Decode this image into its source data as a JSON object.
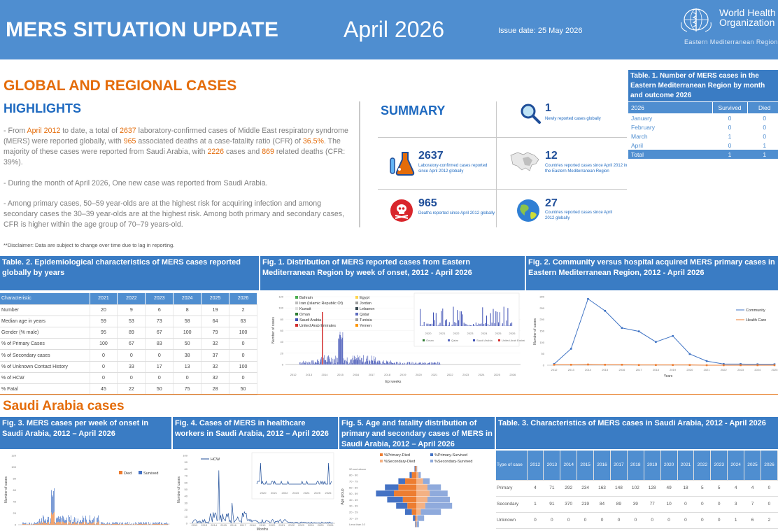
{
  "header": {
    "title": "MERS SITUATION UPDATE",
    "month": "April 2026",
    "issue_date": "Issue date: 25 May 2026",
    "org_name_line1": "World Health",
    "org_name_line2": "Organization",
    "org_region": "Eastern Mediterranean Region"
  },
  "global": {
    "section_title": "GLOBAL AND REGIONAL CASES",
    "highlights_title": "HIGHLIGHTS",
    "p1": {
      "a": "- From ",
      "b": "April 2012",
      "c": " to date, a total of ",
      "d": "2637",
      "e": " laboratory-confirmed cases of Middle East respiratory syndrome (MERS) were reported globally, with ",
      "f": "965",
      "g": " associated deaths at a case-fatality ratio (CFR) of ",
      "h": "36.5%",
      "i": ". The majority of these cases were reported from Saudi Arabia, with ",
      "j": "2226",
      "k": " cases and ",
      "l": "869",
      "m": " related deaths (CFR: 39%)."
    },
    "p2": "- During the month of April 2026, One new case was reported from Saudi Arabia.",
    "p3": "- Among primary cases, 50–59 year-olds are at the highest risk for acquiring infection and among secondary cases the 30–39 year-olds are at the highest risk. Among both primary and secondary cases, CFR is higher within the age group of 70–79 years-old.",
    "disclaimer": "**Disclaimer: Data are subject to change over time due to lag in reporting."
  },
  "summary": {
    "title": "SUMMARY",
    "items": [
      {
        "num": "1",
        "text": "Newly reported cases globally",
        "icon": "magnifier-icon"
      },
      {
        "num": "2637",
        "text": "Laboratory-confirmed cases reported since April 2012 globally",
        "icon": "lab-flask-icon"
      },
      {
        "num": "12",
        "text": "Countries reported cases since April 2012 in the Eastern Mediterranean Region",
        "icon": "region-map-icon"
      },
      {
        "num": "965",
        "text": "Deaths reported since April 2012 globally",
        "icon": "skull-icon"
      },
      {
        "num": "27",
        "text": "Countries reported cases since April 2012 globally",
        "icon": "globe-icon"
      }
    ]
  },
  "table1": {
    "title": "Table. 1. Number of MERS cases in the Eastern Mediterranean Region by month and outcome 2026",
    "headers": [
      "2026",
      "Survived",
      "Died"
    ],
    "rows": [
      [
        "January",
        "0",
        "0"
      ],
      [
        "February",
        "0",
        "0"
      ],
      [
        "March",
        "1",
        "0"
      ],
      [
        "April",
        "0",
        "1"
      ]
    ],
    "total": [
      "Total",
      "1",
      "1"
    ]
  },
  "table2": {
    "title": "Table. 2. Epidemiological characteristics of MERS cases reported globally by years",
    "headers": [
      "Characteristic",
      "2021",
      "2022",
      "2023",
      "2024",
      "2025",
      "2026"
    ],
    "rows": [
      [
        "Number",
        "20",
        "9",
        "6",
        "8",
        "19",
        "2"
      ],
      [
        "Median age in years",
        "59",
        "53",
        "73",
        "58",
        "64",
        "63"
      ],
      [
        "Gender (% male)",
        "95",
        "89",
        "67",
        "100",
        "79",
        "100"
      ],
      [
        "% of Primary Cases",
        "100",
        "67",
        "83",
        "50",
        "32",
        "0"
      ],
      [
        "% of Secondary cases",
        "0",
        "0",
        "0",
        "38",
        "37",
        "0"
      ],
      [
        "% of Unknown Contact History",
        "0",
        "33",
        "17",
        "13",
        "32",
        "100"
      ],
      [
        "% of HCW",
        "0",
        "0",
        "0",
        "0",
        "32",
        "0"
      ],
      [
        "% Fatal",
        "45",
        "22",
        "50",
        "75",
        "28",
        "50"
      ]
    ]
  },
  "fig1": {
    "title": "Fig. 1. Distribution of MERS reported cases from Eastern Mediterranean Region by week of onset, 2012 - April 2026",
    "legend_left": [
      "Bahrain",
      "Iran (Islamic Republic Of)",
      "Kuwait",
      "Oman",
      "Saudi Arabia",
      "United Arab Emirates"
    ],
    "legend_right": [
      "Egypt",
      "Jordan",
      "Lebanon",
      "Qatar",
      "Tunisia",
      "Yemen"
    ],
    "legend_colors_left": [
      "#4caf50",
      "#bdbdbd",
      "#e0e0e0",
      "#2e7d32",
      "#3f51b5",
      "#d32f2f"
    ],
    "legend_colors_right": [
      "#ffd54f",
      "#9e9e9e",
      "#37474f",
      "#5c6bc0",
      "#9e9e9e",
      "#ff9800"
    ],
    "inset_legend": [
      "Oman",
      "Qatar",
      "Saudi Arabia",
      "United Arab Emirates"
    ],
    "inset_years": [
      "2020",
      "2021",
      "2022",
      "2023",
      "2024",
      "2025",
      "2026"
    ],
    "ylabel": "Number of cases",
    "xlabel": "Epi weeks",
    "y_ticks": [
      "0",
      "20",
      "40",
      "60",
      "80",
      "100",
      "120"
    ],
    "years": [
      "2012",
      "2013",
      "2014",
      "2015",
      "2016",
      "2017",
      "2018",
      "2019",
      "2020",
      "2021",
      "2022",
      "2023",
      "2024",
      "2025",
      "2026"
    ]
  },
  "fig2": {
    "title": "Fig. 2. Community versus hospital acquired MERS primary cases in Eastern Mediterranean Region, 2012 - April 2026",
    "ylabel": "Number of cases",
    "xlabel": "Years",
    "y_ticks": [
      "0",
      "50",
      "100",
      "150",
      "200",
      "250",
      "300"
    ],
    "chart_data": {
      "type": "line",
      "x": [
        "2012",
        "2013",
        "2014",
        "2015",
        "2016",
        "2017",
        "2018",
        "2019",
        "2020",
        "2021",
        "2022",
        "2023",
        "2024",
        "2025"
      ],
      "series": [
        {
          "name": "Community",
          "values": [
            5,
            72,
            290,
            238,
            163,
            148,
            102,
            128,
            49,
            18,
            5,
            5,
            4,
            4
          ]
        },
        {
          "name": "Health Care",
          "values": [
            2,
            2,
            3,
            2,
            2,
            1,
            1,
            1,
            1,
            0,
            0,
            0,
            0,
            0
          ]
        }
      ],
      "ylim": [
        0,
        300
      ],
      "colors": [
        "#3f73c4",
        "#ed7d31"
      ],
      "legend": "right"
    }
  },
  "saudi": {
    "section_title": "Saudi Arabia cases"
  },
  "fig3": {
    "title": "Fig. 3. MERS cases per week of onset in Saudi Arabia,  2012 – April 2026",
    "legend": [
      "Died",
      "Survived"
    ],
    "colors": [
      "#ed7d31",
      "#4472c4"
    ],
    "y_ticks": [
      "0",
      "20",
      "40",
      "60",
      "80",
      "100",
      "120"
    ],
    "ylabel": "Number of cases"
  },
  "fig4": {
    "title": "Fig. 4. Cases of MERS in healthcare workers in Saudi Arabia, 2012 – April 2026",
    "legend": "HCW",
    "y_ticks": [
      "0",
      "10",
      "20",
      "30",
      "40",
      "50",
      "60",
      "70",
      "80",
      "90",
      "100"
    ],
    "inset_years": [
      "2020",
      "2021",
      "2022",
      "2023",
      "2024",
      "2025",
      "2026"
    ],
    "years": [
      "2012",
      "2013",
      "2014",
      "2015",
      "2016",
      "2017",
      "2018",
      "2019",
      "2020",
      "2021",
      "2022",
      "2023",
      "2024",
      "2025",
      "2026"
    ],
    "ylabel": "Number of cases",
    "xlabel": "Months"
  },
  "fig5": {
    "title": "Fig. 5. Age and fatality distribution of primary and secondary cases of MERS in Saudi Arabia, 2012 – April 2026",
    "legend": [
      "%Primary-Died",
      "%Primary-Survived",
      "%Secondary-Died",
      "%Secondary-Survived"
    ],
    "age_groups": [
      "90 and above",
      "80 - 90",
      "70 - 79",
      "60 - 69",
      "50 - 59",
      "40 - 49",
      "30 - 39",
      "20 - 29",
      "10 - 19",
      "Less than 10"
    ],
    "ylabel": "Age group",
    "chart_data": {
      "type": "bar",
      "categories": [
        "90 and above",
        "80 - 90",
        "70 - 79",
        "60 - 69",
        "50 - 59",
        "40 - 49",
        "30 - 39",
        "20 - 29",
        "10 - 19",
        "Less than 10"
      ],
      "series": [
        {
          "name": "%Primary-Died",
          "values": [
            0.5,
            2,
            5,
            8,
            10,
            6,
            4,
            2,
            0.5,
            0.2
          ]
        },
        {
          "name": "%Primary-Survived",
          "values": [
            0.3,
            1,
            3,
            6,
            8,
            7,
            5,
            3,
            1,
            0.3
          ]
        },
        {
          "name": "%Secondary-Died",
          "values": [
            0.2,
            1,
            3,
            5,
            6,
            5,
            4,
            2,
            0.5,
            0.2
          ]
        },
        {
          "name": "%Secondary-Survived",
          "values": [
            0.2,
            1,
            3,
            6,
            8,
            10,
            12,
            9,
            3,
            1
          ]
        }
      ],
      "colors": [
        "#ed7d31",
        "#4472c4",
        "#f4b183",
        "#8faadc"
      ]
    }
  },
  "table3": {
    "title": "Table. 3. Characteristics of MERS cases in Saudi Arabia, 2012 - April 2026",
    "headers": [
      "Type of case",
      "2012",
      "2013",
      "2014",
      "2015",
      "2016",
      "2017",
      "2018",
      "2019",
      "2020",
      "2021",
      "2022",
      "2023",
      "2024",
      "2025",
      "2026"
    ],
    "rows": [
      [
        "Primary",
        "4",
        "71",
        "292",
        "234",
        "163",
        "148",
        "102",
        "128",
        "49",
        "18",
        "5",
        "5",
        "4",
        "4",
        "0"
      ],
      [
        "Secondary",
        "1",
        "91",
        "370",
        "219",
        "84",
        "89",
        "39",
        "77",
        "10",
        "0",
        "0",
        "0",
        "3",
        "7",
        "0"
      ],
      [
        "Unknown",
        "0",
        "0",
        "0",
        "0",
        "0",
        "0",
        "0",
        "0",
        "0",
        "0",
        "0",
        "0",
        "1",
        "6",
        "2"
      ]
    ]
  }
}
